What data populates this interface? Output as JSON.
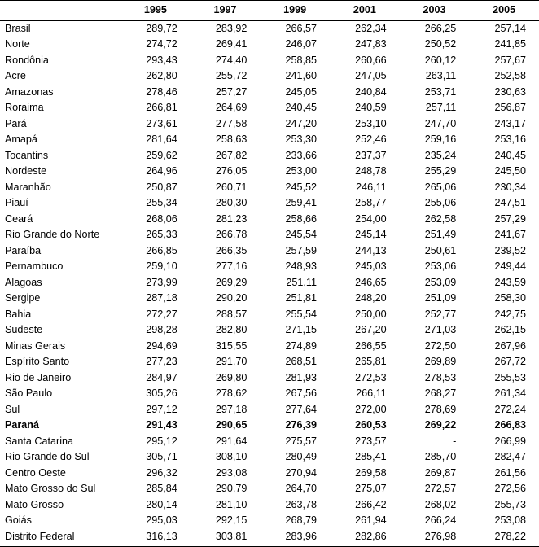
{
  "table": {
    "type": "table",
    "background_color": "#ffffff",
    "text_color": "#000000",
    "border_color": "#000000",
    "font_family": "Arial",
    "header_fontsize": 12.6,
    "cell_fontsize": 12.6,
    "header_font_weight": "bold",
    "row_height": 19.5,
    "label_col_width": 148,
    "data_col_width": 85.6,
    "columns": [
      "",
      "1995",
      "1997",
      "1999",
      "2001",
      "2003",
      "2005"
    ],
    "highlight_rows": [
      "Paraná"
    ],
    "rows": [
      {
        "label": "Brasil",
        "values": [
          "289,72",
          "283,92",
          "266,57",
          "262,34",
          "266,25",
          "257,14"
        ]
      },
      {
        "label": "Norte",
        "values": [
          "274,72",
          "269,41",
          "246,07",
          "247,83",
          "250,52",
          "241,85"
        ]
      },
      {
        "label": "Rondônia",
        "values": [
          "293,43",
          "274,40",
          "258,85",
          "260,66",
          "260,12",
          "257,67"
        ]
      },
      {
        "label": "Acre",
        "values": [
          "262,80",
          "255,72",
          "241,60",
          "247,05",
          "263,11",
          "252,58"
        ]
      },
      {
        "label": "Amazonas",
        "values": [
          "278,46",
          "257,27",
          "245,05",
          "240,84",
          "253,71",
          "230,63"
        ]
      },
      {
        "label": "Roraima",
        "values": [
          "266,81",
          "264,69",
          "240,45",
          "240,59",
          "257,11",
          "256,87"
        ]
      },
      {
        "label": "Pará",
        "values": [
          "273,61",
          "277,58",
          "247,20",
          "253,10",
          "247,70",
          "243,17"
        ]
      },
      {
        "label": "Amapá",
        "values": [
          "281,64",
          "258,63",
          "253,30",
          "252,46",
          "259,16",
          "253,16"
        ]
      },
      {
        "label": "Tocantins",
        "values": [
          "259,62",
          "267,82",
          "233,66",
          "237,37",
          "235,24",
          "240,45"
        ]
      },
      {
        "label": "Nordeste",
        "values": [
          "264,96",
          "276,05",
          "253,00",
          "248,78",
          "255,29",
          "245,50"
        ]
      },
      {
        "label": "Maranhão",
        "values": [
          "250,87",
          "260,71",
          "245,52",
          "246,11",
          "265,06",
          "230,34"
        ]
      },
      {
        "label": "Piauí",
        "values": [
          "255,34",
          "280,30",
          "259,41",
          "258,77",
          "255,06",
          "247,51"
        ]
      },
      {
        "label": "Ceará",
        "values": [
          "268,06",
          "281,23",
          "258,66",
          "254,00",
          "262,58",
          "257,29"
        ]
      },
      {
        "label": "Rio Grande do Norte",
        "values": [
          "265,33",
          "266,78",
          "245,54",
          "245,14",
          "251,49",
          "241,67"
        ]
      },
      {
        "label": "Paraíba",
        "values": [
          "266,85",
          "266,35",
          "257,59",
          "244,13",
          "250,61",
          "239,52"
        ]
      },
      {
        "label": "Pernambuco",
        "values": [
          "259,10",
          "277,16",
          "248,93",
          "245,03",
          "253,06",
          "249,44"
        ]
      },
      {
        "label": "Alagoas",
        "values": [
          "273,99",
          "269,29",
          "251,11",
          "246,65",
          "253,09",
          "243,59"
        ]
      },
      {
        "label": "Sergipe",
        "values": [
          "287,18",
          "290,20",
          "251,81",
          "248,20",
          "251,09",
          "258,30"
        ]
      },
      {
        "label": "Bahia",
        "values": [
          "272,27",
          "288,57",
          "255,54",
          "250,00",
          "252,77",
          "242,75"
        ]
      },
      {
        "label": "Sudeste",
        "values": [
          "298,28",
          "282,80",
          "271,15",
          "267,20",
          "271,03",
          "262,15"
        ]
      },
      {
        "label": "Minas Gerais",
        "values": [
          "294,69",
          "315,55",
          "274,89",
          "266,55",
          "272,50",
          "267,96"
        ]
      },
      {
        "label": "Espírito Santo",
        "values": [
          "277,23",
          "291,70",
          "268,51",
          "265,81",
          "269,89",
          "267,72"
        ]
      },
      {
        "label": "Rio de Janeiro",
        "values": [
          "284,97",
          "269,80",
          "281,93",
          "272,53",
          "278,53",
          "255,53"
        ]
      },
      {
        "label": "São Paulo",
        "values": [
          "305,26",
          "278,62",
          "267,56",
          "266,11",
          "268,27",
          "261,34"
        ]
      },
      {
        "label": "Sul",
        "values": [
          "297,12",
          "297,18",
          "277,64",
          "272,00",
          "278,69",
          "272,24"
        ]
      },
      {
        "label": "Paraná",
        "values": [
          "291,43",
          "290,65",
          "276,39",
          "260,53",
          "269,22",
          "266,83"
        ]
      },
      {
        "label": "Santa Catarina",
        "values": [
          "295,12",
          "291,64",
          "275,57",
          "273,57",
          "-",
          "266,99"
        ]
      },
      {
        "label": "Rio Grande do Sul",
        "values": [
          "305,71",
          "308,10",
          "280,49",
          "285,41",
          "285,70",
          "282,47"
        ]
      },
      {
        "label": "Centro Oeste",
        "values": [
          "296,32",
          "293,08",
          "270,94",
          "269,58",
          "269,87",
          "261,56"
        ]
      },
      {
        "label": "Mato Grosso do Sul",
        "values": [
          "285,84",
          "290,79",
          "264,70",
          "275,07",
          "272,57",
          "272,56"
        ]
      },
      {
        "label": "Mato Grosso",
        "values": [
          "280,14",
          "281,10",
          "263,78",
          "266,42",
          "268,02",
          "255,73"
        ]
      },
      {
        "label": "Goiás",
        "values": [
          "295,03",
          "292,15",
          "268,79",
          "261,94",
          "266,24",
          "253,08"
        ]
      },
      {
        "label": "Distrito Federal",
        "values": [
          "316,13",
          "303,81",
          "283,96",
          "282,86",
          "276,98",
          "278,22"
        ]
      }
    ]
  }
}
